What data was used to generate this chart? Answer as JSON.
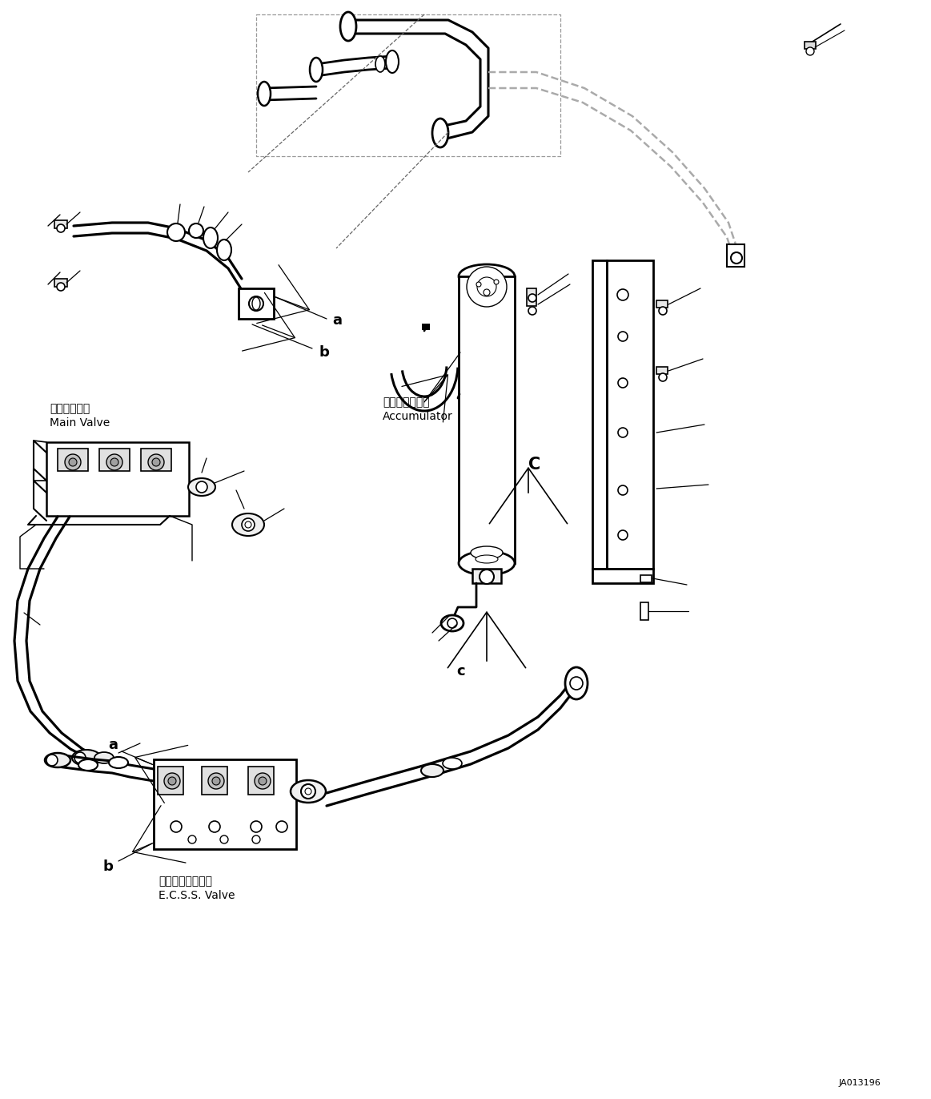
{
  "background_color": "#ffffff",
  "line_color": "#000000",
  "fig_width": 11.63,
  "fig_height": 13.72,
  "dpi": 100,
  "label_a_upper": "a",
  "label_b_upper": "b",
  "label_c_upper": "C",
  "label_c_lower": "c",
  "label_main_valve_jp": "メインバルブ",
  "label_main_valve_en": "Main Valve",
  "label_accumulator_jp": "アキュムレータ",
  "label_accumulator_en": "Accumulator",
  "label_ecss_jp": "走行ダンババルブ",
  "label_ecss_en": "E.C.S.S. Valve",
  "label_id": "JA013196",
  "font_size_label": 10,
  "font_size_id": 8,
  "font_size_marker": 13
}
